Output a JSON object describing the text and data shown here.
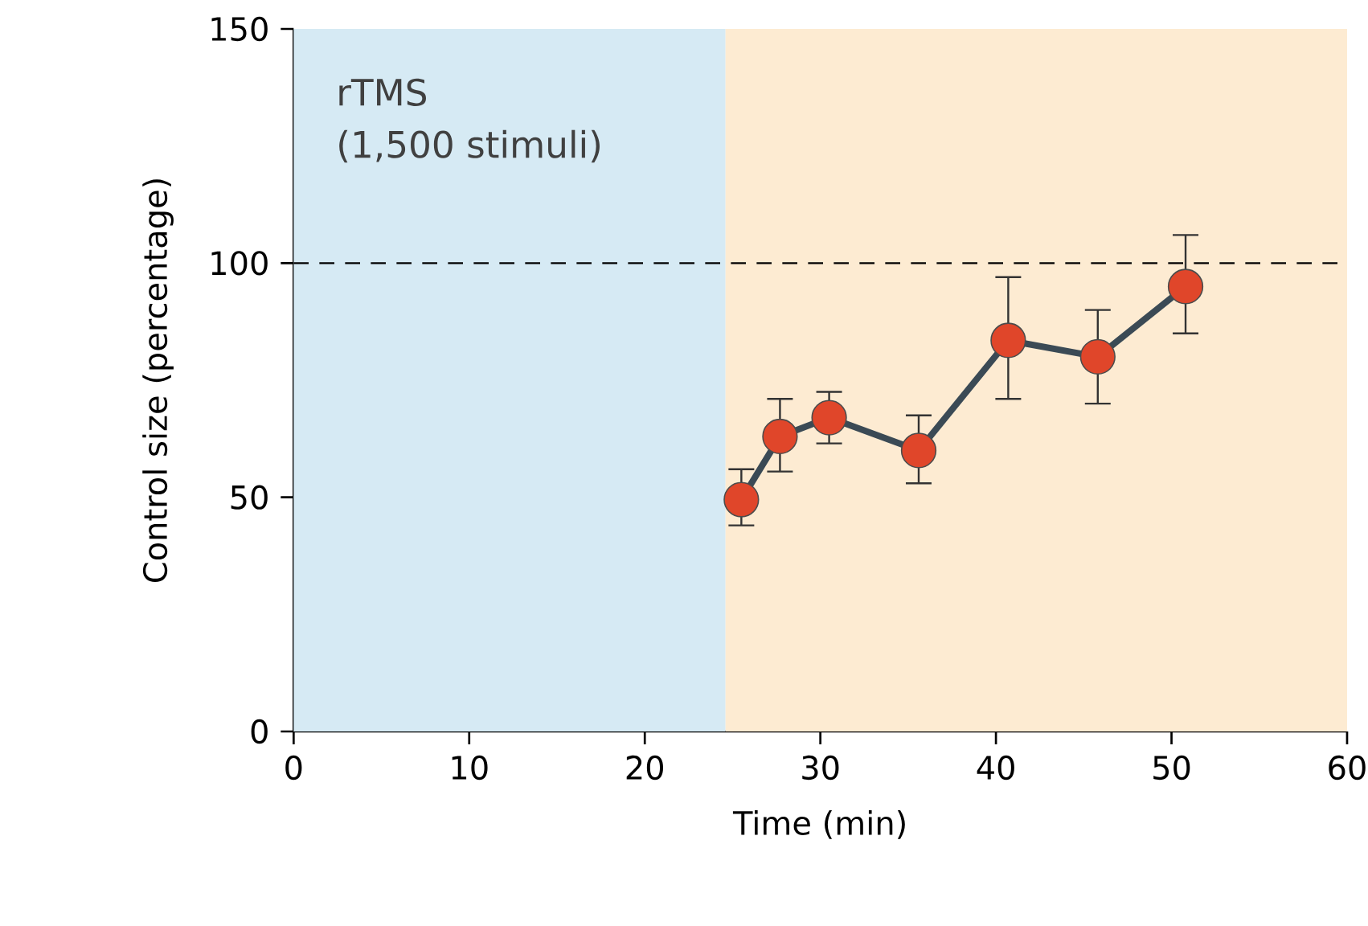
{
  "chart_data": {
    "type": "line",
    "xlabel": "Time (min)",
    "ylabel": "Control size (percentage)",
    "xlim": [
      0,
      60
    ],
    "xticks": [
      0,
      10,
      20,
      30,
      40,
      50,
      60
    ],
    "ylim": [
      0,
      150
    ],
    "yticks": [
      0,
      50,
      100,
      150
    ],
    "series": [
      {
        "color": "#e0462a",
        "x": [
          25.5,
          27.7,
          30.5,
          35.6,
          40.7,
          45.8,
          50.8
        ],
        "values": [
          49.5,
          63,
          67,
          60,
          83.5,
          80,
          95
        ],
        "errors": [
          [
            44,
            56
          ],
          [
            55.5,
            71
          ],
          [
            61.5,
            72.5
          ],
          [
            53,
            67.5
          ],
          [
            71,
            97
          ],
          [
            70,
            90
          ],
          [
            85,
            106
          ]
        ]
      }
    ],
    "marker": "circle",
    "line_style": "solid",
    "ref_lines": [
      {
        "axis": "y",
        "value": 100,
        "line_style": "dashed",
        "color": "#000000"
      }
    ],
    "bands": [
      {
        "axis": "x",
        "from": 0,
        "to": 24.6,
        "color": "#d6eaf4"
      },
      {
        "axis": "x",
        "from": 24.6,
        "to": 60,
        "color": "#fdebd2"
      }
    ],
    "annotations": [
      "rTMS",
      "(1,500 stimuli)"
    ]
  }
}
